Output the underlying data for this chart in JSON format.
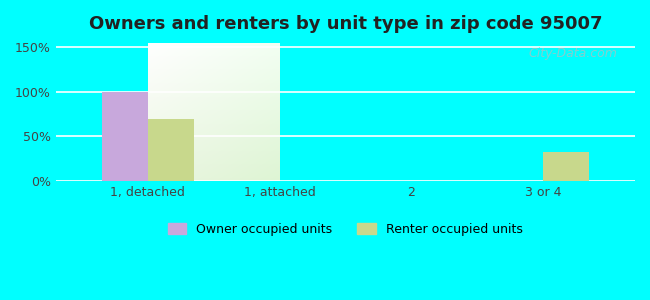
{
  "title": "Owners and renters by unit type in zip code 95007",
  "categories": [
    "1, detached",
    "1, attached",
    "2",
    "3 or 4"
  ],
  "owner_values": [
    100,
    0,
    0,
    0
  ],
  "renter_values": [
    70,
    0,
    0,
    33
  ],
  "owner_color": "#C8A8DC",
  "renter_color": "#C8D88C",
  "yticks": [
    0,
    50,
    100,
    150
  ],
  "ytick_labels": [
    "0%",
    "50%",
    "100%",
    "150%"
  ],
  "ylim": [
    0,
    155
  ],
  "bar_width": 0.35,
  "background_outer": "#00FFFF",
  "legend_owner": "Owner occupied units",
  "legend_renter": "Renter occupied units",
  "watermark": "City-Data.com"
}
